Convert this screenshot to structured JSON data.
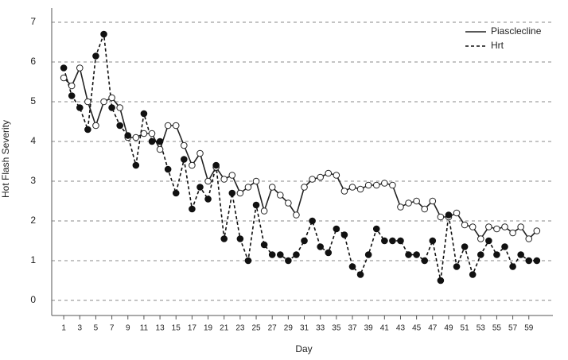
{
  "chart_data": {
    "type": "line",
    "x_label": "Day",
    "y_label": "Hot Flash Severity",
    "x": [
      1,
      2,
      3,
      4,
      5,
      6,
      7,
      8,
      9,
      10,
      11,
      12,
      13,
      14,
      15,
      16,
      17,
      18,
      19,
      20,
      21,
      22,
      23,
      24,
      25,
      26,
      27,
      28,
      29,
      30,
      31,
      32,
      33,
      34,
      35,
      36,
      37,
      38,
      39,
      40,
      41,
      42,
      43,
      44,
      45,
      46,
      47,
      48,
      49,
      50,
      51,
      52,
      53,
      54,
      55,
      56,
      57,
      58,
      59,
      60
    ],
    "series": [
      {
        "name": "Piasclecline",
        "color": "#222222",
        "line_style": "solid",
        "marker_fill": "#ffffff",
        "values": [
          5.6,
          5.4,
          5.85,
          5.0,
          4.4,
          5.0,
          5.1,
          4.85,
          4.1,
          4.1,
          4.2,
          4.2,
          3.8,
          4.4,
          4.4,
          3.9,
          3.4,
          3.7,
          3.0,
          3.35,
          3.05,
          3.15,
          2.7,
          2.85,
          3.0,
          2.25,
          2.85,
          2.65,
          2.45,
          2.15,
          2.85,
          3.05,
          3.1,
          3.2,
          3.15,
          2.75,
          2.85,
          2.8,
          2.9,
          2.9,
          2.95,
          2.9,
          2.35,
          2.45,
          2.5,
          2.3,
          2.5,
          2.1,
          2.1,
          2.2,
          1.9,
          1.85,
          1.55,
          1.85,
          1.8,
          1.85,
          1.7,
          1.85,
          1.55,
          1.75
        ]
      },
      {
        "name": "Hrt",
        "color": "#111111",
        "line_style": "dashed",
        "marker_fill": "#111111",
        "values": [
          5.85,
          5.15,
          4.85,
          4.3,
          6.15,
          6.7,
          4.85,
          4.4,
          4.15,
          3.4,
          4.7,
          4.0,
          4.0,
          3.3,
          2.7,
          3.55,
          2.3,
          2.85,
          2.55,
          3.4,
          1.55,
          2.7,
          1.55,
          1.0,
          2.4,
          1.4,
          1.15,
          1.15,
          1.0,
          1.15,
          1.5,
          2.0,
          1.35,
          1.2,
          1.8,
          1.65,
          0.85,
          0.65,
          1.15,
          1.8,
          1.5,
          1.5,
          1.5,
          1.15,
          1.15,
          1.0,
          1.5,
          0.5,
          2.15,
          0.85,
          1.35,
          0.65,
          1.15,
          1.5,
          1.15,
          1.35,
          0.85,
          1.15,
          1.0,
          1.0
        ]
      }
    ],
    "xlim": [
      -0.5,
      62
    ],
    "ylim": [
      -0.38,
      7.36
    ],
    "xticks": [
      1,
      3,
      5,
      7,
      9,
      11,
      13,
      15,
      17,
      19,
      21,
      23,
      25,
      27,
      29,
      31,
      33,
      35,
      37,
      39,
      41,
      43,
      45,
      47,
      49,
      51,
      53,
      55,
      57,
      59
    ],
    "yticks": [
      0,
      1,
      2,
      3,
      4,
      5,
      6,
      7
    ],
    "grid": true,
    "legend": "top-right"
  }
}
